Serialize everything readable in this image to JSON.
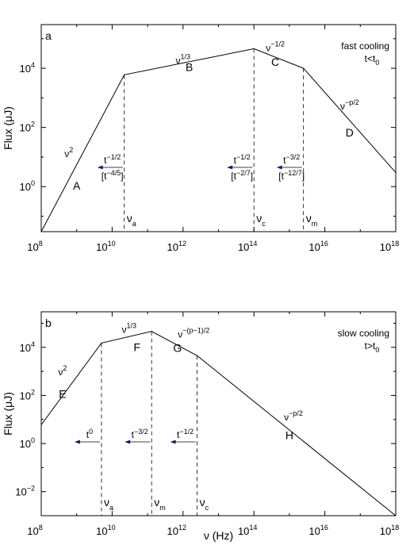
{
  "chart_data": [
    {
      "type": "line",
      "panel_letter": "a",
      "regime": [
        "fast cooling",
        "t<t",
        "0"
      ],
      "ylabel": "Flux (μJ)",
      "xlabel": "",
      "xscale": "log",
      "yscale": "log",
      "xlim": [
        100000000.0,
        1e+18
      ],
      "ylim": [
        0.03,
        300000.0
      ],
      "xticks": [
        {
          "base": "10",
          "exp": "8",
          "value": 100000000.0
        },
        {
          "base": "10",
          "exp": "10",
          "value": 10000000000.0
        },
        {
          "base": "10",
          "exp": "12",
          "value": 1000000000000.0
        },
        {
          "base": "10",
          "exp": "14",
          "value": 100000000000000.0
        },
        {
          "base": "10",
          "exp": "16",
          "value": 1e+16
        },
        {
          "base": "10",
          "exp": "18",
          "value": 1e+18
        }
      ],
      "yticks": [
        {
          "base": "10",
          "exp": "0",
          "value": 1
        },
        {
          "base": "10",
          "exp": "2",
          "value": 100
        },
        {
          "base": "10",
          "exp": "4",
          "value": 10000
        }
      ],
      "series": [
        {
          "x": [
            100000000.0,
            22000000000.0,
            100000000000000.0,
            2500000000000000.0,
            1e+18
          ],
          "y": [
            0.03,
            6000,
            46000,
            10000,
            3
          ]
        }
      ],
      "breaks": [
        {
          "name": "ν",
          "sub": "a",
          "x": 22000000000.0,
          "y": 6000
        },
        {
          "name": "ν",
          "sub": "c",
          "x": 100000000000000.0,
          "y": 46000
        },
        {
          "name": "ν",
          "sub": "m",
          "x": 2500000000000000.0,
          "y": 10000
        }
      ],
      "segments": [
        {
          "letter": "A",
          "x": 1000000000.0,
          "y": 0.8
        },
        {
          "letter": "B",
          "x": 1500000000000.0,
          "y": 8000
        },
        {
          "letter": "C",
          "x": 400000000000000.0,
          "y": 12000
        },
        {
          "letter": "D",
          "x": 5e+16,
          "y": 50
        }
      ],
      "slopes": [
        {
          "base": "ν",
          "exp": "2",
          "x": 600000000.0,
          "y": 10
        },
        {
          "base": "ν",
          "exp": "1/3",
          "x": 1000000000000.0,
          "y": 14000
        },
        {
          "base": "ν",
          "exp": "−1/2",
          "x": 400000000000000.0,
          "y": 38000
        },
        {
          "base": "ν",
          "exp": "−p/2",
          "x": 5e+16,
          "y": 400
        }
      ],
      "evolution": [
        {
          "top_base": "t",
          "top_exp": "−1/2",
          "bottom_base": "[t",
          "bottom_exp": "−4/5",
          "bottom_close": "]",
          "x": 22000000000.0
        },
        {
          "top_base": "t",
          "top_exp": "−1/2",
          "bottom_base": "[t",
          "bottom_exp": "−2/7",
          "bottom_close": "]",
          "x": 100000000000000.0
        },
        {
          "top_base": "t",
          "top_exp": "−3/2",
          "bottom_base": "[t",
          "bottom_exp": "−12/7",
          "bottom_close": "]",
          "x": 2500000000000000.0
        }
      ]
    },
    {
      "type": "line",
      "panel_letter": "b",
      "regime": [
        "slow cooling",
        "t>t",
        "0"
      ],
      "ylabel": "Flux (μJ)",
      "xlabel": "ν (Hz)",
      "xscale": "log",
      "yscale": "log",
      "xlim": [
        100000000.0,
        1e+18
      ],
      "ylim": [
        0.001,
        300000.0
      ],
      "xticks": [
        {
          "base": "10",
          "exp": "8",
          "value": 100000000.0
        },
        {
          "base": "10",
          "exp": "10",
          "value": 10000000000.0
        },
        {
          "base": "10",
          "exp": "12",
          "value": 1000000000000.0
        },
        {
          "base": "10",
          "exp": "14",
          "value": 100000000000000.0
        },
        {
          "base": "10",
          "exp": "16",
          "value": 1e+16
        },
        {
          "base": "10",
          "exp": "18",
          "value": 1e+18
        }
      ],
      "yticks": [
        {
          "base": "10",
          "exp": "−2",
          "value": 0.01
        },
        {
          "base": "10",
          "exp": "0",
          "value": 1
        },
        {
          "base": "10",
          "exp": "2",
          "value": 100
        },
        {
          "base": "10",
          "exp": "4",
          "value": 10000
        }
      ],
      "series": [
        {
          "x": [
            100000000.0,
            5000000000.0,
            130000000000.0,
            2500000000000.0,
            1e+18
          ],
          "y": [
            6,
            15000,
            46000,
            4500,
            0.001
          ]
        }
      ],
      "breaks": [
        {
          "name": "ν",
          "sub": "a",
          "x": 5000000000.0,
          "y": 15000
        },
        {
          "name": "ν",
          "sub": "m",
          "x": 130000000000.0,
          "y": 46000
        },
        {
          "name": "ν",
          "sub": "c",
          "x": 2500000000000.0,
          "y": 4500
        }
      ],
      "segments": [
        {
          "letter": "E",
          "x": 400000000.0,
          "y": 80
        },
        {
          "letter": "F",
          "x": 50000000000.0,
          "y": 7000
        },
        {
          "letter": "G",
          "x": 700000000000.0,
          "y": 6500
        },
        {
          "letter": "H",
          "x": 1000000000000000.0,
          "y": 1.5
        }
      ],
      "slopes": [
        {
          "base": "ν",
          "exp": "2",
          "x": 400000000.0,
          "y": 700
        },
        {
          "base": "ν",
          "exp": "1/3",
          "x": 30000000000.0,
          "y": 40000
        },
        {
          "base": "ν",
          "exp": "−(p−1)/2",
          "x": 2000000000000.0,
          "y": 25000
        },
        {
          "base": "ν",
          "exp": "−p/2",
          "x": 1300000000000000.0,
          "y": 9
        }
      ],
      "evolution": [
        {
          "top_base": "t",
          "top_exp": "0",
          "x": 5000000000.0
        },
        {
          "top_base": "t",
          "top_exp": "−3/2",
          "x": 130000000000.0
        },
        {
          "top_base": "t",
          "top_exp": "−1/2",
          "x": 2500000000000.0
        }
      ]
    }
  ]
}
